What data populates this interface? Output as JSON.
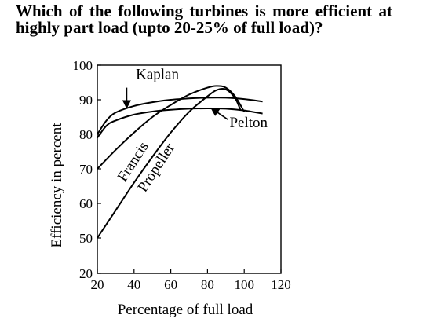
{
  "question": "Which of the following turbines is more efficient at highly part load (upto 20-25% of full load)?",
  "chart_data": {
    "type": "line",
    "xlabel": "Percentage of full load",
    "ylabel": "Efficiency in percent",
    "xlim": [
      20,
      120
    ],
    "ylim": [
      20,
      100
    ],
    "xticks": [
      "20",
      "40",
      "60",
      "80",
      "100",
      "120"
    ],
    "yticks": [
      "20",
      "50",
      "60",
      "70",
      "80",
      "90",
      "100"
    ],
    "series": [
      {
        "name": "Kaplan",
        "color": "#000000",
        "x": [
          20,
          25,
          30,
          40,
          50,
          60,
          70,
          80,
          90,
          100,
          110
        ],
        "y": [
          80,
          84,
          86.3,
          88.2,
          89.3,
          90,
          90.4,
          90.6,
          90.6,
          90.2,
          89.5
        ]
      },
      {
        "name": "Pelton",
        "color": "#000000",
        "x": [
          20,
          25,
          30,
          40,
          50,
          60,
          70,
          80,
          90,
          100,
          110
        ],
        "y": [
          79,
          82.5,
          84,
          85.7,
          86.6,
          87.1,
          87.4,
          87.5,
          87.4,
          86.9,
          86
        ]
      },
      {
        "name": "Francis",
        "color": "#000000",
        "x": [
          20,
          30,
          40,
          50,
          60,
          70,
          80,
          85,
          90,
          95,
          100
        ],
        "y": [
          70,
          75.5,
          80.5,
          85,
          88.5,
          91.5,
          93.5,
          94,
          93.5,
          91,
          86.5
        ]
      },
      {
        "name": "Propeller",
        "color": "#000000",
        "x": [
          20,
          30,
          40,
          50,
          60,
          70,
          80,
          85,
          90,
          95,
          98
        ],
        "y": [
          50,
          58,
          66,
          73.5,
          80.5,
          86.5,
          91,
          92.8,
          93,
          90.5,
          87
        ]
      }
    ],
    "annotations": [
      {
        "label": "Kaplan",
        "x": 41,
        "y": 96
      },
      {
        "label": "Pelton",
        "x": 92,
        "y": 82
      },
      {
        "label": "Francis",
        "x": 35,
        "y": 66
      },
      {
        "label": "Propeller",
        "x": 46,
        "y": 63
      }
    ]
  }
}
